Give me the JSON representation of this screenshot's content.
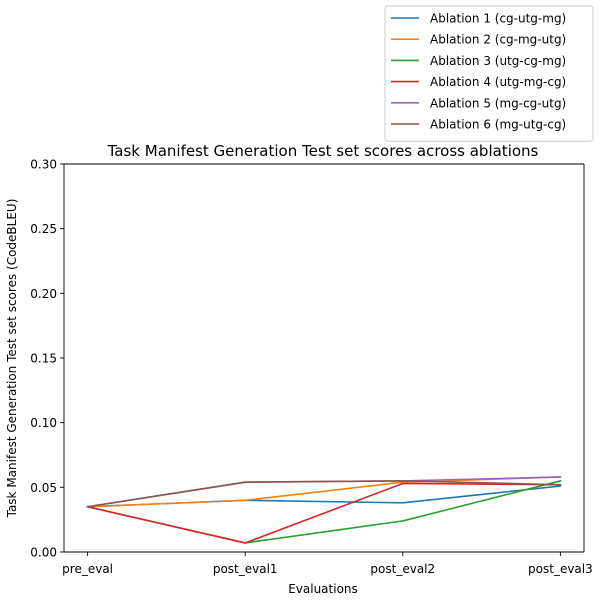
{
  "chart_data": {
    "type": "line",
    "title": "Task Manifest Generation Test set scores across ablations",
    "xlabel": "Evaluations",
    "ylabel": "Task Manifest Generation Test set scores (CodeBLEU)",
    "categories": [
      "pre_eval",
      "post_eval1",
      "post_eval2",
      "post_eval3"
    ],
    "ylim": [
      0,
      0.3
    ],
    "yticks": [
      "0.00",
      "0.05",
      "0.10",
      "0.15",
      "0.20",
      "0.25",
      "0.30"
    ],
    "grid": false,
    "legend_position": "top-right, above plot",
    "series": [
      {
        "name": "Ablation 1 (cg-utg-mg)",
        "color": "#1f77b4",
        "values": [
          0.035,
          0.04,
          0.038,
          0.051
        ]
      },
      {
        "name": "Ablation 2 (cg-mg-utg)",
        "color": "#ff7f0e",
        "values": [
          0.035,
          0.04,
          0.054,
          0.058
        ]
      },
      {
        "name": "Ablation 3 (utg-cg-mg)",
        "color": "#2ca02c",
        "values": [
          0.035,
          0.007,
          0.024,
          0.055
        ]
      },
      {
        "name": "Ablation 4 (utg-mg-cg)",
        "color": "#d62728",
        "values": [
          0.035,
          0.007,
          0.053,
          0.052
        ]
      },
      {
        "name": "Ablation 5 (mg-cg-utg)",
        "color": "#9467bd",
        "values": [
          0.035,
          0.054,
          0.055,
          0.058
        ]
      },
      {
        "name": "Ablation 6 (mg-utg-cg)",
        "color": "#8c564b",
        "values": [
          0.035,
          0.054,
          0.055,
          0.052
        ]
      }
    ]
  }
}
